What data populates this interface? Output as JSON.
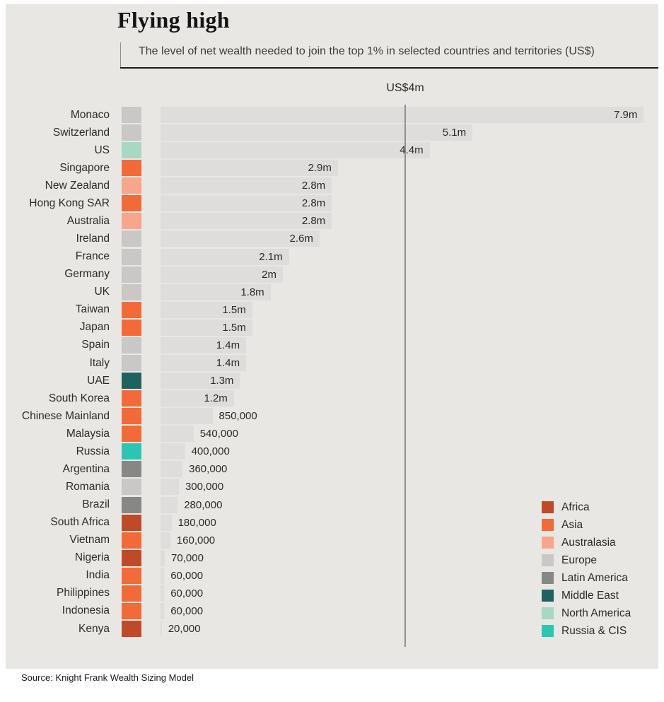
{
  "header": {
    "title": "Flying high",
    "subtitle": "The level of net wealth needed to join the top 1% in selected countries and territories (US$)"
  },
  "chart_data": {
    "type": "bar",
    "orientation": "horizontal",
    "title": "Flying high",
    "subtitle": "The level of net wealth needed to join the top 1% in selected countries and territories (US$)",
    "unit": "US$",
    "xlim": [
      0,
      8150000
    ],
    "grid": false,
    "legend_position": "bottom-right",
    "reference_line": {
      "value": 4000000,
      "label": "US$4m"
    },
    "rows": [
      {
        "label": "Monaco",
        "region": "Europe",
        "value": 7900000,
        "value_label": "7.9m"
      },
      {
        "label": "Switzerland",
        "region": "Europe",
        "value": 5100000,
        "value_label": "5.1m"
      },
      {
        "label": "US",
        "region": "North America",
        "value": 4400000,
        "value_label": "4.4m"
      },
      {
        "label": "Singapore",
        "region": "Asia",
        "value": 2900000,
        "value_label": "2.9m"
      },
      {
        "label": "New Zealand",
        "region": "Australasia",
        "value": 2800000,
        "value_label": "2.8m"
      },
      {
        "label": "Hong Kong SAR",
        "region": "Asia",
        "value": 2800000,
        "value_label": "2.8m"
      },
      {
        "label": "Australia",
        "region": "Australasia",
        "value": 2800000,
        "value_label": "2.8m"
      },
      {
        "label": "Ireland",
        "region": "Europe",
        "value": 2600000,
        "value_label": "2.6m"
      },
      {
        "label": "France",
        "region": "Europe",
        "value": 2100000,
        "value_label": "2.1m"
      },
      {
        "label": "Germany",
        "region": "Europe",
        "value": 2000000,
        "value_label": "2m"
      },
      {
        "label": "UK",
        "region": "Europe",
        "value": 1800000,
        "value_label": "1.8m"
      },
      {
        "label": "Taiwan",
        "region": "Asia",
        "value": 1500000,
        "value_label": "1.5m"
      },
      {
        "label": "Japan",
        "region": "Asia",
        "value": 1500000,
        "value_label": "1.5m"
      },
      {
        "label": "Spain",
        "region": "Europe",
        "value": 1400000,
        "value_label": "1.4m"
      },
      {
        "label": "Italy",
        "region": "Europe",
        "value": 1400000,
        "value_label": "1.4m"
      },
      {
        "label": "UAE",
        "region": "Middle East",
        "value": 1300000,
        "value_label": "1.3m"
      },
      {
        "label": "South Korea",
        "region": "Asia",
        "value": 1200000,
        "value_label": "1.2m"
      },
      {
        "label": "Chinese Mainland",
        "region": "Asia",
        "value": 850000,
        "value_label": "850,000"
      },
      {
        "label": "Malaysia",
        "region": "Asia",
        "value": 540000,
        "value_label": "540,000"
      },
      {
        "label": "Russia",
        "region": "Russia & CIS",
        "value": 400000,
        "value_label": "400,000"
      },
      {
        "label": "Argentina",
        "region": "Latin America",
        "value": 360000,
        "value_label": "360,000"
      },
      {
        "label": "Romania",
        "region": "Europe",
        "value": 300000,
        "value_label": "300,000"
      },
      {
        "label": "Brazil",
        "region": "Latin America",
        "value": 280000,
        "value_label": "280,000"
      },
      {
        "label": "South Africa",
        "region": "Africa",
        "value": 180000,
        "value_label": "180,000"
      },
      {
        "label": "Vietnam",
        "region": "Asia",
        "value": 160000,
        "value_label": "160,000"
      },
      {
        "label": "Nigeria",
        "region": "Africa",
        "value": 70000,
        "value_label": "70,000"
      },
      {
        "label": "India",
        "region": "Asia",
        "value": 60000,
        "value_label": "60,000"
      },
      {
        "label": "Philippines",
        "region": "Asia",
        "value": 60000,
        "value_label": "60,000"
      },
      {
        "label": "Indonesia",
        "region": "Asia",
        "value": 60000,
        "value_label": "60,000"
      },
      {
        "label": "Kenya",
        "region": "Africa",
        "value": 20000,
        "value_label": "20,000"
      }
    ],
    "legend": [
      {
        "name": "Africa",
        "color": "#c04a28"
      },
      {
        "name": "Asia",
        "color": "#f26a38"
      },
      {
        "name": "Australasia",
        "color": "#f7a68b"
      },
      {
        "name": "Europe",
        "color": "#c9c8c6"
      },
      {
        "name": "Latin America",
        "color": "#878785"
      },
      {
        "name": "Middle East",
        "color": "#1f6260"
      },
      {
        "name": "North America",
        "color": "#a7d8c2"
      },
      {
        "name": "Russia & CIS",
        "color": "#2cc5b4"
      }
    ]
  },
  "colors": {
    "background": "#e9e7e3",
    "bar": "#dedddb",
    "reference_line": "#8f8f8f",
    "divider": "#1c1c1c",
    "text": "#2b2b2b"
  },
  "footer": {
    "source": "Source: Knight Frank Wealth Sizing Model"
  }
}
